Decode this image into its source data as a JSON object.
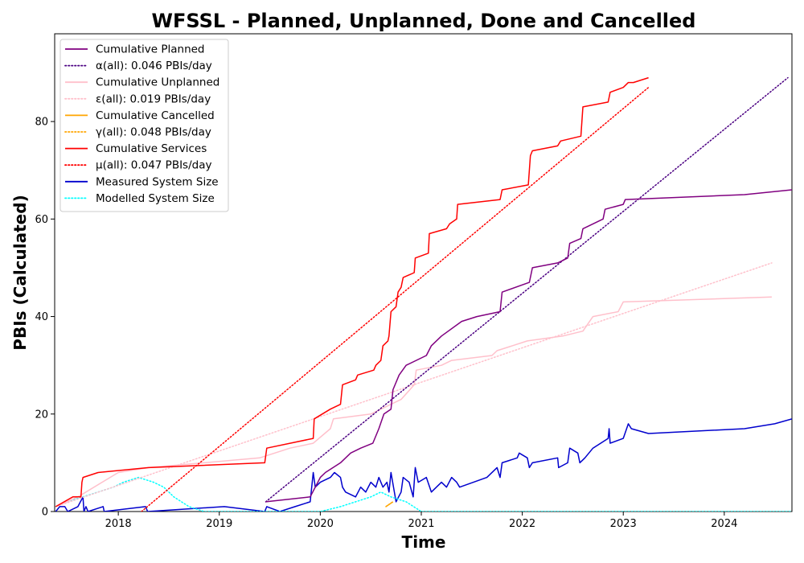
{
  "chart_data": {
    "type": "line",
    "title": "WFSSL - Planned, Unplanned, Done  and Cancelled",
    "xlabel": "Time",
    "ylabel": "PBIs (Calculated)",
    "xlim": [
      2017.37,
      2024.67
    ],
    "ylim": [
      0,
      98
    ],
    "x_ticks": [
      2018,
      2019,
      2020,
      2021,
      2022,
      2023,
      2024
    ],
    "y_ticks": [
      0,
      20,
      40,
      60,
      80
    ],
    "grid": false,
    "legend_position": "top-left",
    "series": [
      {
        "name": "Cumulative Planned",
        "style": "solid",
        "color": "#800080",
        "points": [
          [
            2019.46,
            2
          ],
          [
            2019.9,
            3
          ],
          [
            2020.0,
            7
          ],
          [
            2020.05,
            8
          ],
          [
            2020.2,
            10
          ],
          [
            2020.3,
            12
          ],
          [
            2020.4,
            13
          ],
          [
            2020.52,
            14
          ],
          [
            2020.58,
            17
          ],
          [
            2020.63,
            20
          ],
          [
            2020.7,
            21
          ],
          [
            2020.72,
            25
          ],
          [
            2020.78,
            28
          ],
          [
            2020.85,
            30
          ],
          [
            2021.05,
            32
          ],
          [
            2021.1,
            34
          ],
          [
            2021.2,
            36
          ],
          [
            2021.4,
            39
          ],
          [
            2021.55,
            40
          ],
          [
            2021.78,
            41
          ],
          [
            2021.8,
            45
          ],
          [
            2022.07,
            47
          ],
          [
            2022.1,
            50
          ],
          [
            2022.35,
            51
          ],
          [
            2022.45,
            52
          ],
          [
            2022.47,
            55
          ],
          [
            2022.58,
            56
          ],
          [
            2022.6,
            58
          ],
          [
            2022.8,
            60
          ],
          [
            2022.82,
            62
          ],
          [
            2023.0,
            63
          ],
          [
            2023.02,
            64
          ],
          [
            2024.2,
            65
          ],
          [
            2024.67,
            66
          ]
        ]
      },
      {
        "name": "α(all): 0.046 PBIs/day",
        "style": "dotted",
        "color": "#4b0082",
        "points": [
          [
            2019.46,
            2
          ],
          [
            2024.63,
            89
          ]
        ]
      },
      {
        "name": "Cumulative Unplanned",
        "style": "solid",
        "color": "#ffc0cb",
        "points": [
          [
            2017.38,
            1
          ],
          [
            2017.6,
            3
          ],
          [
            2018.0,
            8
          ],
          [
            2018.3,
            9
          ],
          [
            2019.4,
            11
          ],
          [
            2019.7,
            13
          ],
          [
            2019.93,
            14
          ],
          [
            2020.1,
            17
          ],
          [
            2020.13,
            19
          ],
          [
            2020.5,
            20
          ],
          [
            2020.8,
            23
          ],
          [
            2020.93,
            26
          ],
          [
            2020.95,
            29
          ],
          [
            2021.2,
            30
          ],
          [
            2021.3,
            31
          ],
          [
            2021.7,
            32
          ],
          [
            2021.75,
            33
          ],
          [
            2022.05,
            35
          ],
          [
            2022.4,
            36
          ],
          [
            2022.6,
            37
          ],
          [
            2022.7,
            40
          ],
          [
            2022.95,
            41
          ],
          [
            2023.0,
            43
          ],
          [
            2024.47,
            44
          ]
        ]
      },
      {
        "name": "ε(all): 0.019 PBIs/day",
        "style": "dotted",
        "color": "#ffc0cb",
        "points": [
          [
            2017.38,
            1
          ],
          [
            2024.47,
            51
          ]
        ]
      },
      {
        "name": "Cumulative Cancelled",
        "style": "solid",
        "color": "#ffa500",
        "points": [
          [
            2020.65,
            1
          ],
          [
            2020.72,
            2
          ]
        ]
      },
      {
        "name": "γ(all): 0.048 PBIs/day",
        "style": "dotted",
        "color": "#ffa500",
        "points": [
          [
            2020.65,
            1
          ],
          [
            2020.72,
            2
          ]
        ]
      },
      {
        "name": "Cumulative Services",
        "style": "solid",
        "color": "#ff0000",
        "points": [
          [
            2017.38,
            1
          ],
          [
            2017.55,
            3
          ],
          [
            2017.63,
            3
          ],
          [
            2017.64,
            6
          ],
          [
            2017.65,
            7
          ],
          [
            2017.8,
            8
          ],
          [
            2018.3,
            9
          ],
          [
            2019.45,
            10
          ],
          [
            2019.47,
            13
          ],
          [
            2019.93,
            15
          ],
          [
            2019.94,
            19
          ],
          [
            2020.1,
            21
          ],
          [
            2020.2,
            22
          ],
          [
            2020.22,
            26
          ],
          [
            2020.35,
            27
          ],
          [
            2020.37,
            28
          ],
          [
            2020.53,
            29
          ],
          [
            2020.55,
            30
          ],
          [
            2020.6,
            31
          ],
          [
            2020.62,
            34
          ],
          [
            2020.67,
            35
          ],
          [
            2020.68,
            36
          ],
          [
            2020.7,
            41
          ],
          [
            2020.75,
            42
          ],
          [
            2020.77,
            45
          ],
          [
            2020.8,
            46
          ],
          [
            2020.82,
            48
          ],
          [
            2020.93,
            49
          ],
          [
            2020.94,
            52
          ],
          [
            2021.07,
            53
          ],
          [
            2021.08,
            57
          ],
          [
            2021.25,
            58
          ],
          [
            2021.28,
            59
          ],
          [
            2021.35,
            60
          ],
          [
            2021.36,
            63
          ],
          [
            2021.78,
            64
          ],
          [
            2021.8,
            66
          ],
          [
            2022.06,
            67
          ],
          [
            2022.08,
            73
          ],
          [
            2022.1,
            74
          ],
          [
            2022.35,
            75
          ],
          [
            2022.38,
            76
          ],
          [
            2022.58,
            77
          ],
          [
            2022.6,
            83
          ],
          [
            2022.85,
            84
          ],
          [
            2022.87,
            86
          ],
          [
            2023.0,
            87
          ],
          [
            2023.05,
            88
          ],
          [
            2023.1,
            88
          ],
          [
            2023.25,
            89
          ]
        ]
      },
      {
        "name": "μ(all): 0.047 PBIs/day",
        "style": "dotted",
        "color": "#ff0000",
        "points": [
          [
            2018.23,
            0
          ],
          [
            2023.25,
            87
          ]
        ]
      },
      {
        "name": "Measured System Size",
        "style": "solid",
        "color": "#0000cd",
        "points": [
          [
            2017.38,
            0
          ],
          [
            2017.42,
            1
          ],
          [
            2017.47,
            1
          ],
          [
            2017.5,
            0
          ],
          [
            2017.6,
            1
          ],
          [
            2017.65,
            3
          ],
          [
            2017.66,
            0
          ],
          [
            2017.68,
            1
          ],
          [
            2017.7,
            0
          ],
          [
            2017.85,
            1
          ],
          [
            2017.86,
            0
          ],
          [
            2018.27,
            1
          ],
          [
            2018.29,
            0
          ],
          [
            2019.05,
            1
          ],
          [
            2019.45,
            0
          ],
          [
            2019.47,
            1
          ],
          [
            2019.6,
            0
          ],
          [
            2019.75,
            1
          ],
          [
            2019.9,
            2
          ],
          [
            2019.93,
            8
          ],
          [
            2019.95,
            5
          ],
          [
            2020.0,
            6
          ],
          [
            2020.1,
            7
          ],
          [
            2020.14,
            8
          ],
          [
            2020.2,
            7
          ],
          [
            2020.22,
            5
          ],
          [
            2020.25,
            4
          ],
          [
            2020.35,
            3
          ],
          [
            2020.4,
            5
          ],
          [
            2020.45,
            4
          ],
          [
            2020.5,
            6
          ],
          [
            2020.55,
            5
          ],
          [
            2020.58,
            7
          ],
          [
            2020.62,
            5
          ],
          [
            2020.66,
            6
          ],
          [
            2020.68,
            4
          ],
          [
            2020.7,
            8
          ],
          [
            2020.75,
            2
          ],
          [
            2020.8,
            4
          ],
          [
            2020.82,
            7
          ],
          [
            2020.88,
            6
          ],
          [
            2020.92,
            3
          ],
          [
            2020.94,
            9
          ],
          [
            2020.97,
            6
          ],
          [
            2021.05,
            7
          ],
          [
            2021.1,
            4
          ],
          [
            2021.2,
            6
          ],
          [
            2021.25,
            5
          ],
          [
            2021.3,
            7
          ],
          [
            2021.35,
            6
          ],
          [
            2021.38,
            5
          ],
          [
            2021.65,
            7
          ],
          [
            2021.75,
            9
          ],
          [
            2021.78,
            7
          ],
          [
            2021.8,
            10
          ],
          [
            2021.95,
            11
          ],
          [
            2021.97,
            12
          ],
          [
            2022.05,
            11
          ],
          [
            2022.07,
            9
          ],
          [
            2022.1,
            10
          ],
          [
            2022.35,
            11
          ],
          [
            2022.36,
            9
          ],
          [
            2022.45,
            10
          ],
          [
            2022.47,
            13
          ],
          [
            2022.55,
            12
          ],
          [
            2022.57,
            10
          ],
          [
            2022.62,
            11
          ],
          [
            2022.7,
            13
          ],
          [
            2022.85,
            15
          ],
          [
            2022.86,
            17
          ],
          [
            2022.87,
            14
          ],
          [
            2023.0,
            15
          ],
          [
            2023.05,
            18
          ],
          [
            2023.08,
            17
          ],
          [
            2023.25,
            16
          ],
          [
            2024.2,
            17
          ],
          [
            2024.5,
            18
          ],
          [
            2024.67,
            19
          ]
        ]
      },
      {
        "name": "Modelled System Size",
        "style": "dotted",
        "color": "#00ffff",
        "points": [
          [
            2017.38,
            1
          ],
          [
            2017.5,
            2
          ],
          [
            2017.65,
            3
          ],
          [
            2017.8,
            4
          ],
          [
            2017.95,
            5
          ],
          [
            2018.05,
            6
          ],
          [
            2018.2,
            7
          ],
          [
            2018.35,
            6
          ],
          [
            2018.45,
            5
          ],
          [
            2018.55,
            3
          ],
          [
            2018.7,
            1
          ],
          [
            2018.85,
            0
          ],
          [
            2020.0,
            0
          ],
          [
            2020.2,
            1
          ],
          [
            2020.35,
            2
          ],
          [
            2020.5,
            3
          ],
          [
            2020.6,
            4
          ],
          [
            2020.7,
            3
          ],
          [
            2020.85,
            2
          ],
          [
            2021.0,
            0
          ],
          [
            2024.67,
            0
          ]
        ]
      }
    ]
  }
}
